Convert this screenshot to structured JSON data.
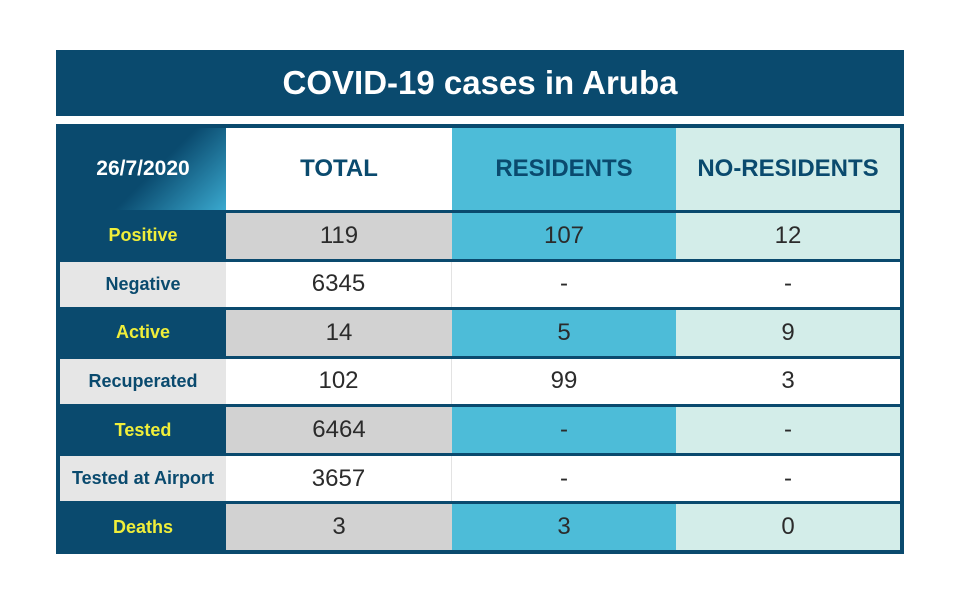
{
  "title": "COVID-19 cases in Aruba",
  "chart_data": {
    "type": "table",
    "date": "26/7/2020",
    "columns": [
      "TOTAL",
      "RESIDENTS",
      "NO-RESIDENTS"
    ],
    "rows": [
      {
        "label": "Positive",
        "values": [
          "119",
          "107",
          "12"
        ]
      },
      {
        "label": "Negative",
        "values": [
          "6345",
          "-",
          "-"
        ]
      },
      {
        "label": "Active",
        "values": [
          "14",
          "5",
          "9"
        ]
      },
      {
        "label": "Recuperated",
        "values": [
          "102",
          "99",
          "3"
        ]
      },
      {
        "label": "Tested",
        "values": [
          "6464",
          "-",
          "-"
        ]
      },
      {
        "label": "Tested at Airport",
        "values": [
          "3657",
          "-",
          "-"
        ]
      },
      {
        "label": "Deaths",
        "values": [
          "3",
          "3",
          "0"
        ]
      }
    ]
  },
  "colors": {
    "navy": "#0a4a6e",
    "blue": "#4dbcd8",
    "mint": "#d3ede9",
    "label_yellow": "#f0ee3a"
  }
}
